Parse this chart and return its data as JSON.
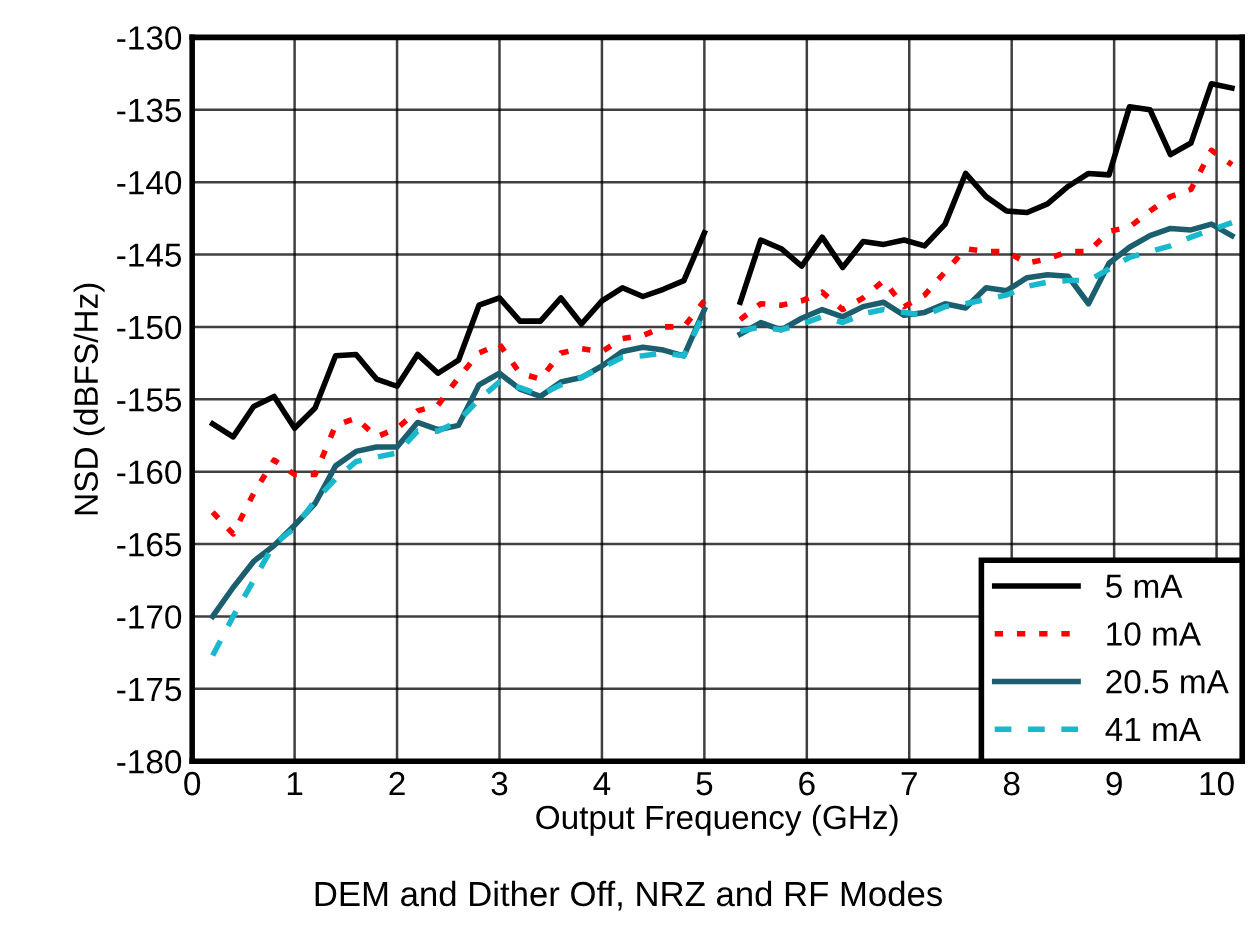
{
  "chart_data": {
    "type": "line",
    "title": "DEM and Dither Off, NRZ and RF Modes",
    "xlabel": "Output Frequency (GHz)",
    "ylabel": "NSD (dBFS/Hz)",
    "x": [
      0.2,
      0.4,
      0.6,
      0.8,
      1.0,
      1.2,
      1.4,
      1.6,
      1.8,
      2.0,
      2.2,
      2.4,
      2.6,
      2.8,
      3.0,
      3.2,
      3.4,
      3.6,
      3.8,
      4.0,
      4.2,
      4.4,
      4.6,
      4.8,
      5.0,
      5.2,
      5.35,
      5.55,
      5.75,
      5.95,
      6.15,
      6.35,
      6.55,
      6.75,
      6.95,
      7.15,
      7.35,
      7.55,
      7.75,
      7.95,
      8.15,
      8.35,
      8.55,
      8.75,
      8.95,
      9.15,
      9.35,
      9.55,
      9.75,
      9.95,
      10.15
    ],
    "series": [
      {
        "name": "5 mA",
        "color": "#000000",
        "line_style": "solid",
        "values": [
          -156.7,
          -157.6,
          -155.5,
          -154.8,
          -157.0,
          -155.6,
          -152.0,
          -151.9,
          -153.6,
          -154.1,
          -151.9,
          -153.2,
          -152.3,
          -148.5,
          -148.0,
          -149.6,
          -149.6,
          -148.0,
          -149.8,
          -148.2,
          -147.3,
          -147.9,
          -147.4,
          -146.8,
          -143.5,
          null,
          -148.3,
          -144.0,
          -144.6,
          -145.8,
          -143.8,
          -145.9,
          -144.1,
          -144.3,
          -144.0,
          -144.4,
          -142.9,
          -139.4,
          -141.0,
          -142.0,
          -142.1,
          -141.5,
          -140.3,
          -139.4,
          -139.5,
          -134.8,
          -135.0,
          -138.1,
          -137.3,
          -133.2,
          -133.5
        ]
      },
      {
        "name": "10 mA",
        "color": "#ff0000",
        "line_style": "dotted",
        "values": [
          -162.8,
          -164.3,
          -161.5,
          -159.2,
          -160.2,
          -160.2,
          -156.8,
          -156.3,
          -157.6,
          -157.0,
          -155.8,
          -155.4,
          -153.5,
          -151.8,
          -151.2,
          -153.2,
          -153.6,
          -151.8,
          -151.5,
          -151.7,
          -150.8,
          -150.6,
          -150.0,
          -150.0,
          -148.2,
          null,
          -149.5,
          -148.4,
          -148.5,
          -148.2,
          -147.6,
          -148.8,
          -148.0,
          -146.8,
          -148.6,
          -147.8,
          -146.2,
          -144.6,
          -144.8,
          -144.8,
          -145.6,
          -145.3,
          -144.8,
          -144.8,
          -143.4,
          -143.1,
          -142.0,
          -141.0,
          -140.5,
          -137.8,
          -138.8
        ]
      },
      {
        "name": "20.5 mA",
        "color": "#1b5e6e",
        "line_style": "solid",
        "values": [
          -170.0,
          -168.0,
          -166.2,
          -165.1,
          -163.7,
          -162.2,
          -159.6,
          -158.6,
          -158.3,
          -158.3,
          -156.6,
          -157.1,
          -156.8,
          -154.0,
          -153.2,
          -154.3,
          -154.8,
          -153.8,
          -153.5,
          -152.7,
          -151.7,
          -151.4,
          -151.6,
          -152.0,
          -148.8,
          null,
          -150.5,
          -149.7,
          -150.2,
          -149.4,
          -148.8,
          -149.3,
          -148.6,
          -148.3,
          -149.2,
          -149.0,
          -148.4,
          -148.7,
          -147.3,
          -147.5,
          -146.6,
          -146.4,
          -146.5,
          -148.4,
          -145.6,
          -144.5,
          -143.7,
          -143.2,
          -143.3,
          -142.9,
          -143.7
        ]
      },
      {
        "name": "41 mA",
        "color": "#19b8cc",
        "line_style": "dashed",
        "values": [
          -172.7,
          -170.0,
          -167.5,
          -165.0,
          -163.9,
          -162.0,
          -160.5,
          -159.3,
          -159.0,
          -158.7,
          -157.2,
          -157.2,
          -156.5,
          -155.0,
          -153.8,
          -154.2,
          -154.7,
          -154.0,
          -153.5,
          -152.8,
          -152.1,
          -152.0,
          -151.8,
          -152.0,
          -149.0,
          null,
          -150.3,
          -150.0,
          -150.2,
          -149.8,
          -149.3,
          -149.7,
          -149.1,
          -148.8,
          -149.0,
          -149.2,
          -148.6,
          -148.4,
          -148.1,
          -147.8,
          -147.2,
          -146.9,
          -146.8,
          -146.8,
          -146.0,
          -145.2,
          -144.8,
          -144.4,
          -143.8,
          -143.3,
          -142.8
        ]
      }
    ],
    "xlim": [
      0,
      10.25
    ],
    "xticks": [
      0,
      1,
      2,
      3,
      4,
      5,
      6,
      7,
      8,
      9,
      10
    ],
    "ylim": [
      -180,
      -130
    ],
    "yticks": [
      -180,
      -175,
      -170,
      -165,
      -160,
      -155,
      -150,
      -145,
      -140,
      -135,
      -130
    ],
    "grid": true,
    "legend": "lower right",
    "marker": "none"
  }
}
